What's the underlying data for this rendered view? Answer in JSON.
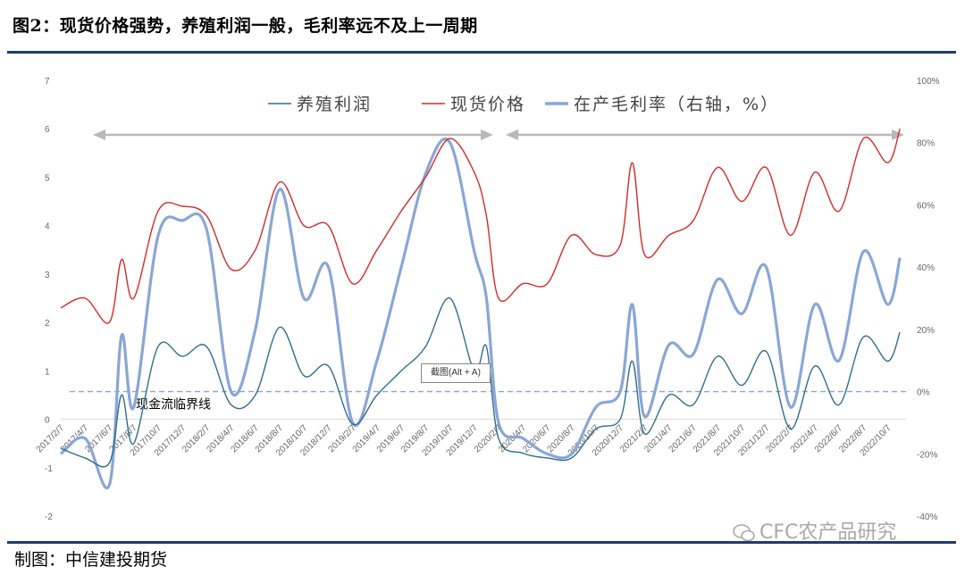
{
  "figure_title": "图2：现货价格强势，养殖利润一般，毛利率远不及上一周期",
  "source_label": "制图：中信建投期货",
  "tooltip_text": "截图(Alt + A)",
  "watermark_text": "CFC农产品研究",
  "threshold_label": "现金流临界线",
  "colors": {
    "profit": "#2f6e8e",
    "price": "#d42a2a",
    "margin": "#8aa6d6",
    "rule": "#1f3b73",
    "threshold": "#8aa6d6",
    "arrow": "#b8b8b8"
  },
  "chart_data": {
    "type": "line",
    "title": "",
    "left_axis": {
      "min": -2,
      "max": 7,
      "ticks": [
        "7",
        "6",
        "5",
        "4",
        "3",
        "2",
        "1",
        "0",
        "-1",
        "-2"
      ]
    },
    "right_axis": {
      "min": -40,
      "max": 100,
      "unit": "%",
      "ticks": [
        "100%",
        "80%",
        "60%",
        "40%",
        "20%",
        "0%",
        "-20%",
        "-40%"
      ]
    },
    "x_tick_labels": [
      "2017/2/7",
      "2017/4/7",
      "2017/6/7",
      "2017/8/7",
      "2017/10/7",
      "2017/12/7",
      "2018/2/7",
      "2018/4/7",
      "2018/6/7",
      "2018/8/7",
      "2018/10/7",
      "2018/12/7",
      "2019/2/7",
      "2019/4/7",
      "2019/6/7",
      "2019/8/7",
      "2019/10/7",
      "2019/12/7",
      "2020/2/7",
      "2020/4/7",
      "2020/6/7",
      "2020/8/7",
      "2020/10/7",
      "2020/12/7",
      "2021/2/7",
      "2021/4/7",
      "2021/6/7",
      "2021/8/7",
      "2021/10/7",
      "2021/12/7",
      "2022/2/7",
      "2022/4/7",
      "2022/6/7",
      "2022/8/7",
      "2022/10/7"
    ],
    "threshold": {
      "axis": "right",
      "value": 0
    },
    "series": [
      {
        "name": "养殖利润",
        "axis": "left",
        "x": [
          "2017/2",
          "2017/4",
          "2017/6",
          "2017/7",
          "2017/8",
          "2017/10",
          "2017/12",
          "2018/2",
          "2018/4",
          "2018/6",
          "2018/8",
          "2018/10",
          "2018/12",
          "2019/2",
          "2019/4",
          "2019/6",
          "2019/8",
          "2019/10",
          "2019/12",
          "2020/1",
          "2020/2",
          "2020/4",
          "2020/6",
          "2020/8",
          "2020/10",
          "2020/12",
          "2021/1",
          "2021/2",
          "2021/4",
          "2021/6",
          "2021/8",
          "2021/10",
          "2021/12",
          "2022/2",
          "2022/4",
          "2022/6",
          "2022/8",
          "2022/10",
          "2022/11"
        ],
        "values": [
          -0.6,
          -0.8,
          -0.9,
          0.5,
          -0.5,
          1.5,
          1.3,
          1.5,
          0.3,
          0.5,
          1.9,
          0.9,
          1.1,
          -0.1,
          0.5,
          1.0,
          1.5,
          2.5,
          1.0,
          1.5,
          -0.4,
          -0.7,
          -0.8,
          -0.8,
          -0.2,
          0.0,
          1.2,
          -0.3,
          0.5,
          0.3,
          1.3,
          0.7,
          1.4,
          -0.2,
          1.1,
          0.3,
          1.7,
          1.2,
          1.8
        ]
      },
      {
        "name": "现货价格",
        "axis": "left",
        "x": [
          "2017/2",
          "2017/4",
          "2017/6",
          "2017/7",
          "2017/8",
          "2017/10",
          "2017/12",
          "2018/2",
          "2018/4",
          "2018/6",
          "2018/8",
          "2018/10",
          "2018/12",
          "2019/2",
          "2019/4",
          "2019/6",
          "2019/8",
          "2019/10",
          "2019/12",
          "2020/1",
          "2020/2",
          "2020/4",
          "2020/6",
          "2020/8",
          "2020/10",
          "2020/12",
          "2021/1",
          "2021/2",
          "2021/4",
          "2021/6",
          "2021/8",
          "2021/10",
          "2021/12",
          "2022/2",
          "2022/4",
          "2022/6",
          "2022/8",
          "2022/10",
          "2022/11"
        ],
        "values": [
          2.3,
          2.5,
          2.0,
          3.3,
          2.5,
          4.3,
          4.4,
          4.2,
          3.1,
          3.5,
          4.9,
          4.0,
          4.0,
          2.8,
          3.5,
          4.3,
          5.0,
          5.8,
          5.1,
          4.2,
          2.5,
          2.8,
          2.8,
          3.8,
          3.4,
          3.6,
          5.3,
          3.4,
          3.8,
          4.1,
          5.2,
          4.5,
          5.2,
          3.8,
          5.1,
          4.3,
          5.8,
          5.3,
          6.0
        ]
      },
      {
        "name": "在产毛利率（右轴，%）",
        "axis": "right",
        "x": [
          "2017/2",
          "2017/4",
          "2017/6",
          "2017/7",
          "2017/8",
          "2017/10",
          "2017/12",
          "2018/2",
          "2018/4",
          "2018/6",
          "2018/8",
          "2018/10",
          "2018/12",
          "2019/2",
          "2019/4",
          "2019/6",
          "2019/8",
          "2019/10",
          "2019/12",
          "2020/1",
          "2020/2",
          "2020/4",
          "2020/6",
          "2020/8",
          "2020/10",
          "2020/12",
          "2021/1",
          "2021/2",
          "2021/4",
          "2021/6",
          "2021/8",
          "2021/10",
          "2021/12",
          "2022/2",
          "2022/4",
          "2022/6",
          "2022/8",
          "2022/10",
          "2022/11"
        ],
        "values": [
          -20,
          -15,
          -30,
          18,
          -5,
          50,
          55,
          52,
          0,
          20,
          65,
          30,
          40,
          -10,
          10,
          40,
          70,
          80,
          45,
          30,
          -10,
          -15,
          -20,
          -20,
          -5,
          0,
          28,
          -8,
          15,
          12,
          36,
          25,
          40,
          -5,
          28,
          10,
          45,
          28,
          43
        ]
      }
    ]
  }
}
